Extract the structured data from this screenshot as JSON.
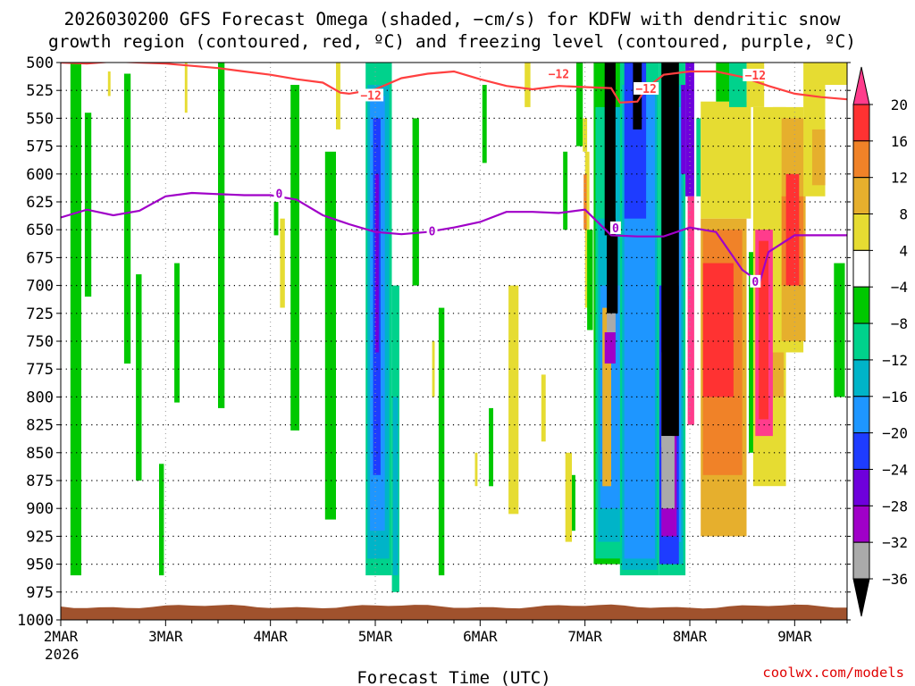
{
  "chart_data": {
    "type": "heatmap",
    "title_line1": "2026030200 GFS Forecast Omega (shaded, −cm/s) for KDFW with dendritic snow",
    "title_line2": "growth region (contoured, red, ºC) and freezing level (contoured, purple, ºC)",
    "xlabel": "Forecast Time (UTC)",
    "credit": "coolwx.com/models",
    "x_range_hours": [
      0,
      180
    ],
    "x_ticks": [
      {
        "h": 0,
        "label": "2MAR"
      },
      {
        "h": 24,
        "label": "3MAR"
      },
      {
        "h": 48,
        "label": "4MAR"
      },
      {
        "h": 72,
        "label": "5MAR"
      },
      {
        "h": 96,
        "label": "6MAR"
      },
      {
        "h": 120,
        "label": "7MAR"
      },
      {
        "h": 144,
        "label": "8MAR"
      },
      {
        "h": 168,
        "label": "9MAR"
      }
    ],
    "x_year_label": "2026",
    "y_range": [
      500,
      1000
    ],
    "y_ticks": [
      500,
      525,
      550,
      575,
      600,
      625,
      650,
      675,
      700,
      725,
      750,
      775,
      800,
      825,
      850,
      875,
      900,
      925,
      950,
      975,
      1000
    ],
    "colorbar": {
      "labels": [
        "20",
        "16",
        "12",
        "8",
        "4",
        "−4",
        "−8",
        "−12",
        "−16",
        "−20",
        "−24",
        "−28",
        "−32",
        "−36"
      ],
      "colors": [
        "#ff3c8c",
        "#ff3232",
        "#f08228",
        "#e6af2d",
        "#e6dc32",
        "#ffffff",
        "#00c800",
        "#00d28c",
        "#00b4c8",
        "#1e96ff",
        "#1e3cff",
        "#6e00dc",
        "#a000c8",
        "#aaaaaa",
        "#000000"
      ]
    },
    "contour_colors": {
      "dgz": "#ff4040",
      "freezing": "#a000c8",
      "ground": "#a0522d"
    },
    "contour_labels": {
      "dgz": "−12",
      "freezing": "0"
    },
    "dgz_line": {
      "h": [
        0,
        6,
        12,
        18,
        24,
        30,
        36,
        42,
        48,
        54,
        60,
        64,
        66,
        72,
        78,
        84,
        90,
        96,
        102,
        108,
        114,
        120,
        126,
        128,
        132,
        134,
        138,
        144,
        150,
        156,
        162,
        168,
        174,
        180
      ],
      "p": [
        500,
        501,
        499,
        500,
        501,
        503,
        505,
        508,
        511,
        515,
        518,
        527,
        528,
        524,
        514,
        510,
        508,
        515,
        521,
        524,
        521,
        522,
        523,
        536,
        535,
        523,
        511,
        508,
        508,
        513,
        521,
        528,
        531,
        533
      ]
    },
    "freezing_line": {
      "h": [
        0,
        6,
        12,
        18,
        24,
        30,
        36,
        42,
        48,
        54,
        60,
        66,
        72,
        78,
        84,
        90,
        96,
        102,
        108,
        114,
        120,
        126,
        132,
        138,
        144,
        150,
        156,
        160,
        162,
        168,
        174,
        180
      ],
      "p": [
        639,
        632,
        637,
        633,
        620,
        617,
        618,
        619,
        619,
        623,
        637,
        645,
        652,
        654,
        652,
        648,
        643,
        634,
        634,
        635,
        632,
        655,
        656,
        656,
        648,
        652,
        686,
        697,
        670,
        655,
        655,
        655
      ]
    },
    "cells": [
      {
        "h0": 2.2,
        "h1": 4.7,
        "p0": 500,
        "p1": 960,
        "v": -7
      },
      {
        "h0": 5.5,
        "h1": 7.0,
        "p0": 545,
        "p1": 710,
        "v": -7
      },
      {
        "h0": 10.8,
        "h1": 11.4,
        "p0": 508,
        "p1": 530,
        "v": 5
      },
      {
        "h0": 14.5,
        "h1": 16.0,
        "p0": 510,
        "p1": 770,
        "v": -7
      },
      {
        "h0": 17.2,
        "h1": 18.5,
        "p0": 690,
        "p1": 875,
        "v": -7
      },
      {
        "h0": 22.5,
        "h1": 23.6,
        "p0": 860,
        "p1": 960,
        "v": -7
      },
      {
        "h0": 26.0,
        "h1": 27.2,
        "p0": 680,
        "p1": 805,
        "v": -7
      },
      {
        "h0": 28.4,
        "h1": 29.0,
        "p0": 500,
        "p1": 545,
        "v": 5
      },
      {
        "h0": 36.0,
        "h1": 37.5,
        "p0": 500,
        "p1": 810,
        "v": -7
      },
      {
        "h0": 48.8,
        "h1": 49.8,
        "p0": 625,
        "p1": 655,
        "v": -7
      },
      {
        "h0": 50.2,
        "h1": 51.3,
        "p0": 640,
        "p1": 720,
        "v": 5
      },
      {
        "h0": 52.6,
        "h1": 54.6,
        "p0": 520,
        "p1": 830,
        "v": -7
      },
      {
        "h0": 60.5,
        "h1": 63.0,
        "p0": 580,
        "p1": 910,
        "v": -7
      },
      {
        "h0": 63.0,
        "h1": 64.0,
        "p0": 500,
        "p1": 560,
        "v": 5
      },
      {
        "h0": 69.8,
        "h1": 75.8,
        "p0": 500,
        "p1": 960,
        "v": -11
      },
      {
        "h0": 70.2,
        "h1": 75.2,
        "p0": 520,
        "p1": 945,
        "v": -15
      },
      {
        "h0": 70.8,
        "h1": 74.2,
        "p0": 530,
        "p1": 920,
        "v": -19
      },
      {
        "h0": 71.5,
        "h1": 73.2,
        "p0": 550,
        "p1": 870,
        "v": -23
      },
      {
        "h0": 72.0,
        "h1": 72.8,
        "p0": 600,
        "p1": 760,
        "v": -27
      },
      {
        "h0": 75.8,
        "h1": 77.5,
        "p0": 700,
        "p1": 975,
        "v": -11
      },
      {
        "h0": 76.0,
        "h1": 77.2,
        "p0": 800,
        "p1": 960,
        "v": -15
      },
      {
        "h0": 80.5,
        "h1": 82.0,
        "p0": 550,
        "p1": 700,
        "v": -7
      },
      {
        "h0": 85.0,
        "h1": 85.6,
        "p0": 750,
        "p1": 800,
        "v": 5
      },
      {
        "h0": 86.5,
        "h1": 87.8,
        "p0": 720,
        "p1": 960,
        "v": -7
      },
      {
        "h0": 94.8,
        "h1": 95.4,
        "p0": 850,
        "p1": 880,
        "v": 5
      },
      {
        "h0": 96.5,
        "h1": 97.5,
        "p0": 520,
        "p1": 590,
        "v": -7
      },
      {
        "h0": 98.0,
        "h1": 99.0,
        "p0": 810,
        "p1": 880,
        "v": -7
      },
      {
        "h0": 102.5,
        "h1": 104.8,
        "p0": 700,
        "p1": 905,
        "v": 5
      },
      {
        "h0": 106.2,
        "h1": 107.5,
        "p0": 500,
        "p1": 540,
        "v": 5
      },
      {
        "h0": 110.0,
        "h1": 111.0,
        "p0": 780,
        "p1": 840,
        "v": 5
      },
      {
        "h0": 115.0,
        "h1": 116.0,
        "p0": 580,
        "p1": 650,
        "v": -7
      },
      {
        "h0": 115.5,
        "h1": 117.0,
        "p0": 850,
        "p1": 930,
        "v": 5
      },
      {
        "h0": 117.0,
        "h1": 117.8,
        "p0": 870,
        "p1": 920,
        "v": -7
      },
      {
        "h0": 118.0,
        "h1": 119.5,
        "p0": 500,
        "p1": 575,
        "v": -7
      },
      {
        "h0": 119.5,
        "h1": 120.5,
        "p0": 550,
        "p1": 580,
        "v": 5
      },
      {
        "h0": 120.0,
        "h1": 121.0,
        "p0": 580,
        "p1": 720,
        "v": 5
      },
      {
        "h0": 119.7,
        "h1": 120.4,
        "p0": 600,
        "p1": 650,
        "v": 14
      },
      {
        "h0": 120.5,
        "h1": 121.8,
        "p0": 650,
        "p1": 740,
        "v": -7
      },
      {
        "h0": 122.0,
        "h1": 130.0,
        "p0": 500,
        "p1": 950,
        "v": -7
      },
      {
        "h0": 122.4,
        "h1": 129.6,
        "p0": 540,
        "p1": 945,
        "v": -11
      },
      {
        "h0": 123.0,
        "h1": 129.0,
        "p0": 640,
        "p1": 930,
        "v": -15
      },
      {
        "h0": 123.5,
        "h1": 128.5,
        "p0": 700,
        "p1": 900,
        "v": -19
      },
      {
        "h0": 124.0,
        "h1": 126.0,
        "p0": 720,
        "p1": 880,
        "v": 12
      },
      {
        "h0": 124.5,
        "h1": 127.0,
        "p0": 500,
        "p1": 655,
        "v": -36
      },
      {
        "h0": 125.0,
        "h1": 127.5,
        "p0": 655,
        "p1": 725,
        "v": -36
      },
      {
        "h0": 125.0,
        "h1": 127.0,
        "p0": 725,
        "p1": 742,
        "v": -34
      },
      {
        "h0": 124.5,
        "h1": 127.0,
        "p0": 742,
        "p1": 770,
        "v": -29
      },
      {
        "h0": 127.0,
        "h1": 129.5,
        "p0": 540,
        "p1": 640,
        "v": -15
      },
      {
        "h0": 128.0,
        "h1": 137.0,
        "p0": 500,
        "p1": 960,
        "v": -11
      },
      {
        "h0": 128.5,
        "h1": 136.5,
        "p0": 520,
        "p1": 955,
        "v": -15
      },
      {
        "h0": 129.0,
        "h1": 136.0,
        "p0": 520,
        "p1": 945,
        "v": -19
      },
      {
        "h0": 129.0,
        "h1": 134.0,
        "p0": 500,
        "p1": 640,
        "v": -23
      },
      {
        "h0": 131.0,
        "h1": 133.0,
        "p0": 500,
        "p1": 560,
        "v": -36
      },
      {
        "h0": 137.0,
        "h1": 143.0,
        "p0": 500,
        "p1": 960,
        "v": -11
      },
      {
        "h0": 137.5,
        "h1": 142.5,
        "p0": 520,
        "p1": 950,
        "v": -15
      },
      {
        "h0": 138.0,
        "h1": 142.0,
        "p0": 540,
        "p1": 930,
        "v": -19
      },
      {
        "h0": 137.0,
        "h1": 141.5,
        "p0": 700,
        "p1": 950,
        "v": -23
      },
      {
        "h0": 137.5,
        "h1": 141.0,
        "p0": 740,
        "p1": 925,
        "v": -29
      },
      {
        "h0": 137.5,
        "h1": 140.5,
        "p0": 760,
        "p1": 900,
        "v": -34
      },
      {
        "h0": 137.5,
        "h1": 141.5,
        "p0": 500,
        "p1": 835,
        "v": -36
      },
      {
        "h0": 137.5,
        "h1": 140.0,
        "p0": 835,
        "p1": 845,
        "v": -34
      },
      {
        "h0": 142.0,
        "h1": 143.0,
        "p0": 520,
        "p1": 600,
        "v": -27
      },
      {
        "h0": 143.0,
        "h1": 145.0,
        "p0": 500,
        "p1": 620,
        "v": -27
      },
      {
        "h0": 143.5,
        "h1": 145.0,
        "p0": 620,
        "p1": 825,
        "v": 21
      },
      {
        "h0": 145.5,
        "h1": 146.5,
        "p0": 550,
        "p1": 620,
        "v": -11
      },
      {
        "h0": 146.5,
        "h1": 157.0,
        "p0": 640,
        "p1": 925,
        "v": 10
      },
      {
        "h0": 146.5,
        "h1": 158.0,
        "p0": 535,
        "p1": 640,
        "v": 6
      },
      {
        "h0": 147.0,
        "h1": 156.0,
        "p0": 650,
        "p1": 870,
        "v": 14
      },
      {
        "h0": 147.0,
        "h1": 154.0,
        "p0": 680,
        "p1": 800,
        "v": 17
      },
      {
        "h0": 150.0,
        "h1": 156.0,
        "p0": 500,
        "p1": 535,
        "v": -7
      },
      {
        "h0": 153.0,
        "h1": 157.0,
        "p0": 500,
        "p1": 540,
        "v": -11
      },
      {
        "h0": 157.0,
        "h1": 161.0,
        "p0": 500,
        "p1": 540,
        "v": 6
      },
      {
        "h0": 159.5,
        "h1": 160.5,
        "p0": 600,
        "p1": 650,
        "v": 14
      },
      {
        "h0": 157.5,
        "h1": 159.0,
        "p0": 670,
        "p1": 850,
        "v": -7
      },
      {
        "h0": 158.5,
        "h1": 166.0,
        "p0": 540,
        "p1": 880,
        "v": 6
      },
      {
        "h0": 159.0,
        "h1": 165.5,
        "p0": 650,
        "p1": 800,
        "v": 10
      },
      {
        "h0": 159.0,
        "h1": 163.0,
        "p0": 650,
        "p1": 835,
        "v": 21
      },
      {
        "h0": 159.8,
        "h1": 162.0,
        "p0": 660,
        "p1": 820,
        "v": 17
      },
      {
        "h0": 163.0,
        "h1": 170.0,
        "p0": 540,
        "p1": 760,
        "v": 6
      },
      {
        "h0": 165.0,
        "h1": 170.5,
        "p0": 550,
        "p1": 750,
        "v": 10
      },
      {
        "h0": 165.0,
        "h1": 170.0,
        "p0": 620,
        "p1": 700,
        "v": 14
      },
      {
        "h0": 166.0,
        "h1": 169.0,
        "p0": 600,
        "p1": 700,
        "v": 17
      },
      {
        "h0": 170.0,
        "h1": 175.0,
        "p0": 500,
        "p1": 620,
        "v": 6
      },
      {
        "h0": 172.0,
        "h1": 175.0,
        "p0": 560,
        "p1": 610,
        "v": 10
      },
      {
        "h0": 172.0,
        "h1": 180.0,
        "p0": 500,
        "p1": 520,
        "v": 6
      },
      {
        "h0": 177.0,
        "h1": 179.5,
        "p0": 680,
        "p1": 800,
        "v": -7
      }
    ]
  }
}
